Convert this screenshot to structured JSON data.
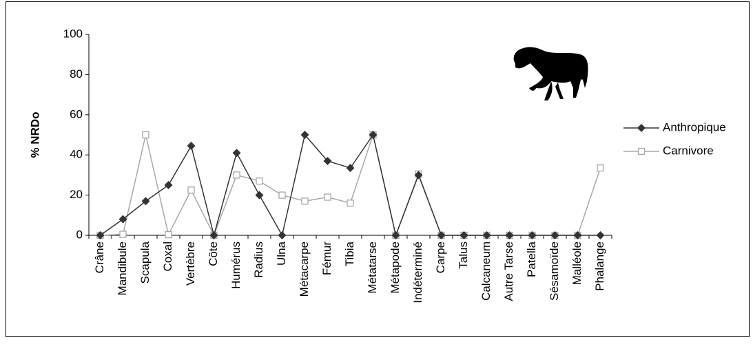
{
  "chart_data": {
    "type": "line",
    "y_label": "% NRDo",
    "categories": [
      "Crâne",
      "Mandibule",
      "Scapula",
      "Coxal",
      "Vertèbre",
      "Côte",
      "Humérus",
      "Radius",
      "Ulna",
      "Métacarpe",
      "Fémur",
      "Tibia",
      "Métatarse",
      "Métapode",
      "Indéterminé",
      "Carpe",
      "Talus",
      "Calcaneum",
      "Autre Tarse",
      "Patella",
      "Sésamoïde",
      "Malléole",
      "Phalange"
    ],
    "series": [
      {
        "name": "Anthropique",
        "color": "#333333",
        "marker": "diamond",
        "values": [
          0,
          8,
          17,
          25,
          44.5,
          0,
          41,
          20,
          0,
          50,
          37,
          33.5,
          50,
          0,
          30,
          0,
          0,
          0,
          0,
          0,
          0,
          0,
          0
        ]
      },
      {
        "name": "Carnivore",
        "color": "#a6a6a6",
        "marker": "square",
        "values": [
          0,
          0.5,
          50,
          0.3,
          22.5,
          0,
          30,
          27,
          20,
          17,
          19,
          16,
          50,
          0,
          30.5,
          0,
          0,
          0,
          0,
          0,
          0,
          0,
          33.5
        ]
      }
    ],
    "ylim": [
      0,
      100
    ],
    "yticks": [
      0,
      20,
      40,
      60,
      80,
      100
    ],
    "grid": false,
    "legend": "right"
  }
}
